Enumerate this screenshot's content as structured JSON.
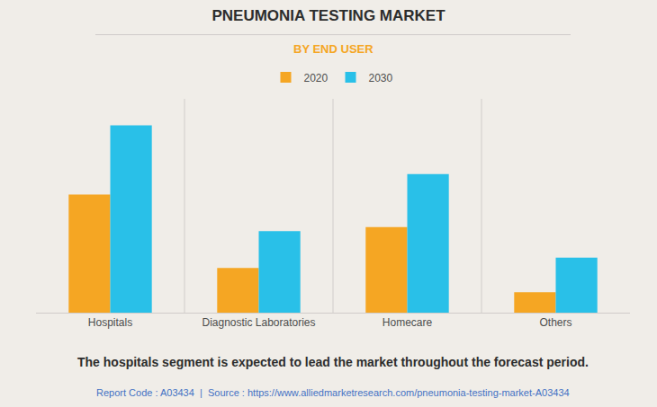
{
  "chart_data": {
    "type": "bar",
    "title": "PNEUMONIA TESTING MARKET",
    "subtitle": "BY END USER",
    "categories": [
      "Hospitals",
      "Diagnostic Laboratories",
      "Homecare",
      "Others"
    ],
    "series": [
      {
        "name": "2020",
        "color": "#F5A623",
        "values": [
          0.58,
          0.22,
          0.42,
          0.1
        ]
      },
      {
        "name": "2030",
        "color": "#29C0E8",
        "values": [
          0.92,
          0.4,
          0.68,
          0.27
        ]
      }
    ],
    "ylim": [
      0,
      1.05
    ],
    "grid": false,
    "tick_labels": "x",
    "annotations": [
      "The hospitals segment is expected to lead the market throughout the forecast period.",
      "Report Code : A03434  |  Source : https://www.alliedmarketresearch.com/pneumonia-testing-market-A03434"
    ]
  }
}
